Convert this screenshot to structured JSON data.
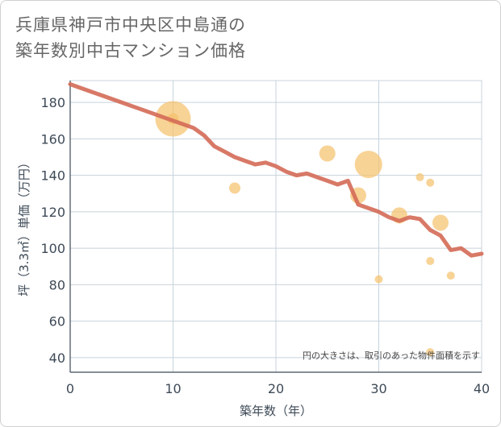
{
  "title": "兵庫県神戸市中央区中島通の\n築年数別中古マンション価格",
  "chart_data": {
    "type": "scatter",
    "title": "兵庫県神戸市中央区中島通の築年数別中古マンション価格",
    "xlabel": "築年数（年）",
    "ylabel": "坪（3.3㎡）単価（万円）",
    "xlim": [
      0,
      40
    ],
    "ylim": [
      32,
      192
    ],
    "x_ticks": [
      0,
      10,
      20,
      30,
      40
    ],
    "y_ticks": [
      40,
      60,
      80,
      100,
      120,
      140,
      160,
      180
    ],
    "grid": true,
    "note": "円の大きさは、取引のあった物件面積を示す",
    "colors": {
      "bubble": "#f5c069",
      "line": "#d46a57",
      "grid": "#c8d3dc",
      "axis": "#3e4a57"
    },
    "series": [
      {
        "type": "scatter",
        "points": [
          {
            "x": 10,
            "y": 171,
            "size": 22
          },
          {
            "x": 10,
            "y": 171,
            "size": 7
          },
          {
            "x": 16,
            "y": 133,
            "size": 7
          },
          {
            "x": 25,
            "y": 152,
            "size": 10
          },
          {
            "x": 28,
            "y": 129,
            "size": 10
          },
          {
            "x": 29,
            "y": 146,
            "size": 17
          },
          {
            "x": 30,
            "y": 83,
            "size": 5
          },
          {
            "x": 32,
            "y": 118,
            "size": 10
          },
          {
            "x": 34,
            "y": 139,
            "size": 5
          },
          {
            "x": 35,
            "y": 136,
            "size": 5
          },
          {
            "x": 35,
            "y": 93,
            "size": 5
          },
          {
            "x": 35,
            "y": 43,
            "size": 5
          },
          {
            "x": 36,
            "y": 114,
            "size": 10
          },
          {
            "x": 37,
            "y": 85,
            "size": 5
          }
        ]
      },
      {
        "type": "line",
        "x": [
          0,
          1,
          2,
          3,
          4,
          5,
          6,
          7,
          8,
          9,
          10,
          11,
          12,
          13,
          14,
          15,
          16,
          17,
          18,
          19,
          20,
          21,
          22,
          23,
          24,
          25,
          26,
          27,
          28,
          29,
          30,
          31,
          32,
          33,
          34,
          35,
          36,
          37,
          38,
          39,
          40
        ],
        "y": [
          190,
          188,
          186,
          184,
          182,
          180,
          178,
          176,
          174,
          172,
          170,
          168,
          166,
          162,
          156,
          153,
          150,
          148,
          146,
          147,
          145,
          142,
          140,
          141,
          139,
          137,
          135,
          137,
          124,
          122,
          120,
          117,
          115,
          117,
          116,
          110,
          107,
          99,
          100,
          96,
          97
        ]
      }
    ]
  }
}
